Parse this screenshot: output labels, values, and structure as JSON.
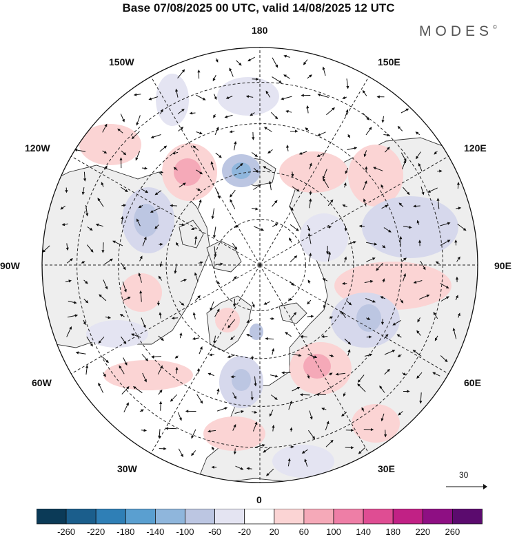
{
  "title": "Base 07/08/2025 00 UTC, valid 14/08/2025 12 UTC",
  "brand": "MODES",
  "brand_mark": "©",
  "longitude_labels": {
    "lon_180": "180",
    "lon_150e": "150E",
    "lon_120e": "120E",
    "lon_90e": "90E",
    "lon_60e": "60E",
    "lon_30e": "30E",
    "lon_0": "0",
    "lon_30w": "30W",
    "lon_60w": "60W",
    "lon_90w": "90W",
    "lon_120w": "120W",
    "lon_150w": "150W"
  },
  "vector_scale": {
    "label": "30"
  },
  "colorbar": {
    "levels": [
      "-260",
      "-220",
      "-180",
      "-140",
      "-100",
      "-60",
      "-20",
      "20",
      "60",
      "100",
      "140",
      "180",
      "220",
      "260"
    ],
    "colors": [
      "#0b3a57",
      "#1b5e8c",
      "#2f7fb6",
      "#5a9fd0",
      "#8fb6dc",
      "#bcc6e2",
      "#e4e4f2",
      "#ffffff",
      "#fbd4d4",
      "#f5a9b8",
      "#ee7ea6",
      "#df4d93",
      "#c12185",
      "#8e0f83",
      "#5b0b6e"
    ]
  },
  "colors": {
    "land": "#eeeeee",
    "ocean": "#ffffff",
    "grid": "#222222",
    "coast": "#333333"
  }
}
